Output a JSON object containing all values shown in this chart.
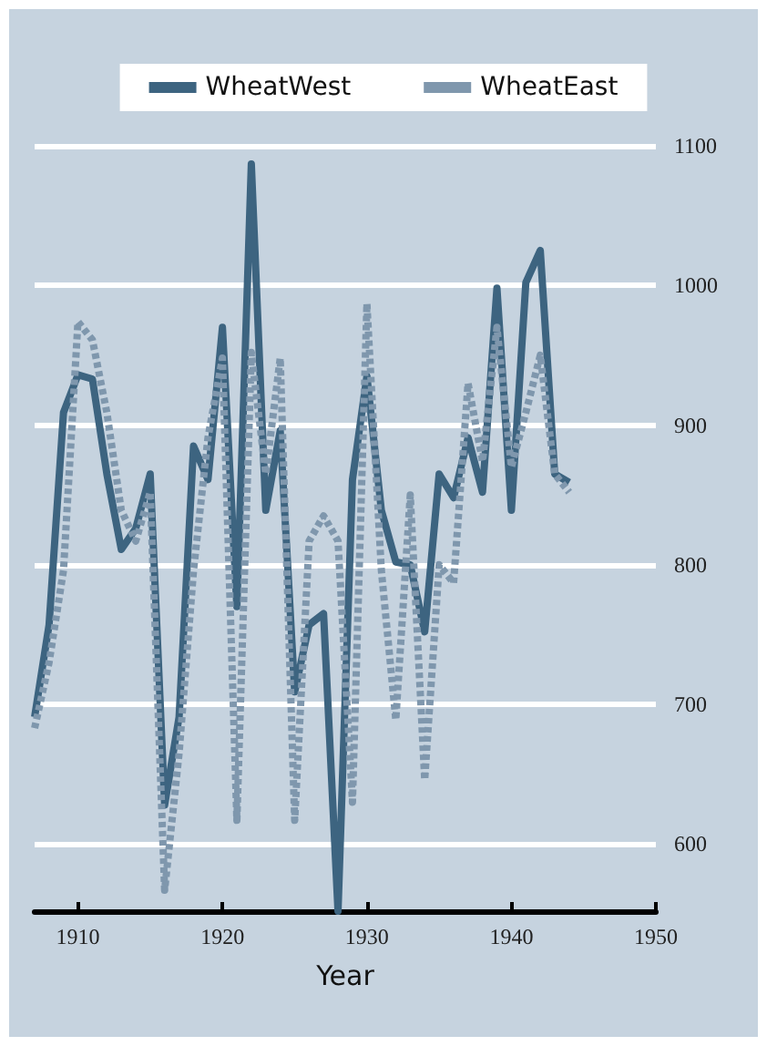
{
  "chart_data": {
    "type": "line",
    "xlabel": "Year",
    "x": [
      1907,
      1908,
      1909,
      1910,
      1911,
      1912,
      1913,
      1914,
      1915,
      1916,
      1917,
      1918,
      1919,
      1920,
      1921,
      1922,
      1923,
      1924,
      1925,
      1926,
      1927,
      1928,
      1929,
      1930,
      1931,
      1932,
      1933,
      1934,
      1935,
      1936,
      1937,
      1938,
      1939,
      1940,
      1941,
      1942,
      1943,
      1944
    ],
    "series": [
      {
        "name": "WheatWest",
        "color": "#3d6480",
        "line_style": "solid",
        "values": [
          691,
          757,
          909,
          936,
          933,
          865,
          811,
          826,
          865,
          628,
          691,
          885,
          861,
          970,
          770,
          1087,
          839,
          896,
          709,
          757,
          765,
          552,
          861,
          935,
          839,
          802,
          800,
          752,
          865,
          848,
          891,
          852,
          998,
          839,
          1002,
          1025,
          865,
          859
        ]
      },
      {
        "name": "WheatEast",
        "color": "#7f97ad",
        "line_style": "dashed",
        "values": [
          683,
          730,
          796,
          974,
          961,
          909,
          839,
          817,
          852,
          567,
          665,
          796,
          891,
          948,
          617,
          952,
          865,
          948,
          617,
          817,
          835,
          817,
          630,
          987,
          796,
          689,
          850,
          646,
          800,
          787,
          930,
          874,
          970,
          870,
          909,
          950,
          865,
          852
        ]
      }
    ],
    "xlim": [
      1907,
      1950
    ],
    "xticks": [
      1910,
      1920,
      1930,
      1940,
      1950
    ],
    "ylim": [
      552,
      1100
    ],
    "yticks": [
      600,
      700,
      800,
      900,
      1000,
      1100
    ],
    "grid": "y",
    "legend": "top",
    "marker": "none"
  }
}
